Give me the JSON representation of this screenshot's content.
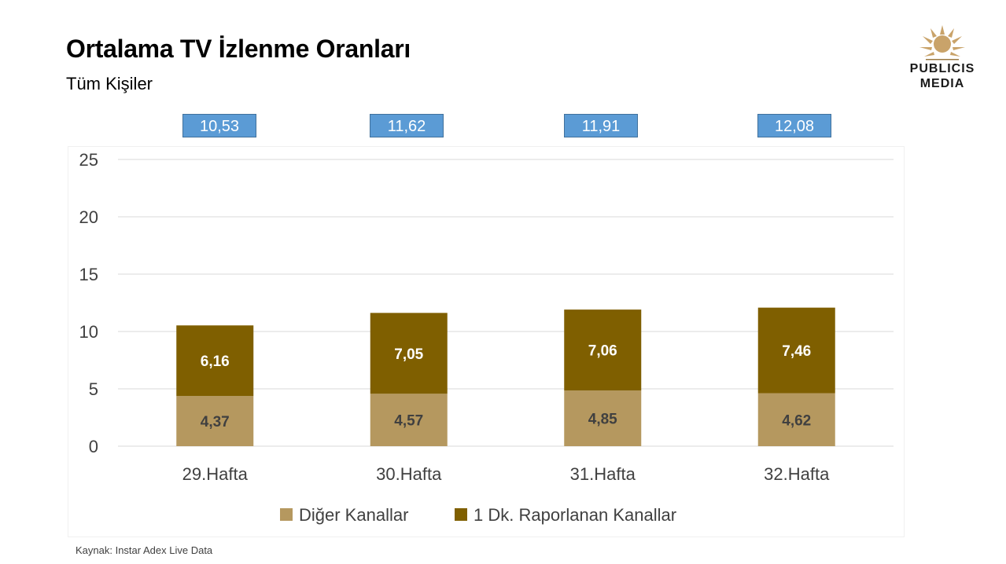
{
  "header": {
    "title": "Ortalama TV İzlenme Oranları",
    "subtitle": "Tüm Kişiler"
  },
  "logo": {
    "line1": "PUBLICIS",
    "line2": "MEDIA",
    "icon": "lion-head-logo"
  },
  "totals": [
    "10,53",
    "11,62",
    "11,91",
    "12,08"
  ],
  "footer": {
    "source": "Kaynak: Instar  Adex Live Data"
  },
  "colors": {
    "diger": "#b5985f",
    "raporlanan": "#7f5f00",
    "total_box": "#5b9bd5",
    "grid": "#d9d9d9",
    "axis_text": "#404040"
  },
  "chart_data": {
    "type": "bar",
    "stacked": true,
    "categories": [
      "29.Hafta",
      "30.Hafta",
      "31.Hafta",
      "32.Hafta"
    ],
    "series": [
      {
        "name": "Diğer Kanallar",
        "values": [
          4.37,
          4.57,
          4.85,
          4.62
        ],
        "labels": [
          "4,37",
          "4,57",
          "4,85",
          "4,62"
        ],
        "color": "#b5985f"
      },
      {
        "name": "1 Dk. Raporlanan Kanallar",
        "values": [
          6.16,
          7.05,
          7.06,
          7.46
        ],
        "labels": [
          "6,16",
          "7,05",
          "7,06",
          "7,46"
        ],
        "color": "#7f5f00"
      }
    ],
    "ylim": [
      0,
      25
    ],
    "yticks": [
      "0",
      "5",
      "10",
      "15",
      "20",
      "25"
    ],
    "grid": true,
    "legend_position": "bottom"
  }
}
